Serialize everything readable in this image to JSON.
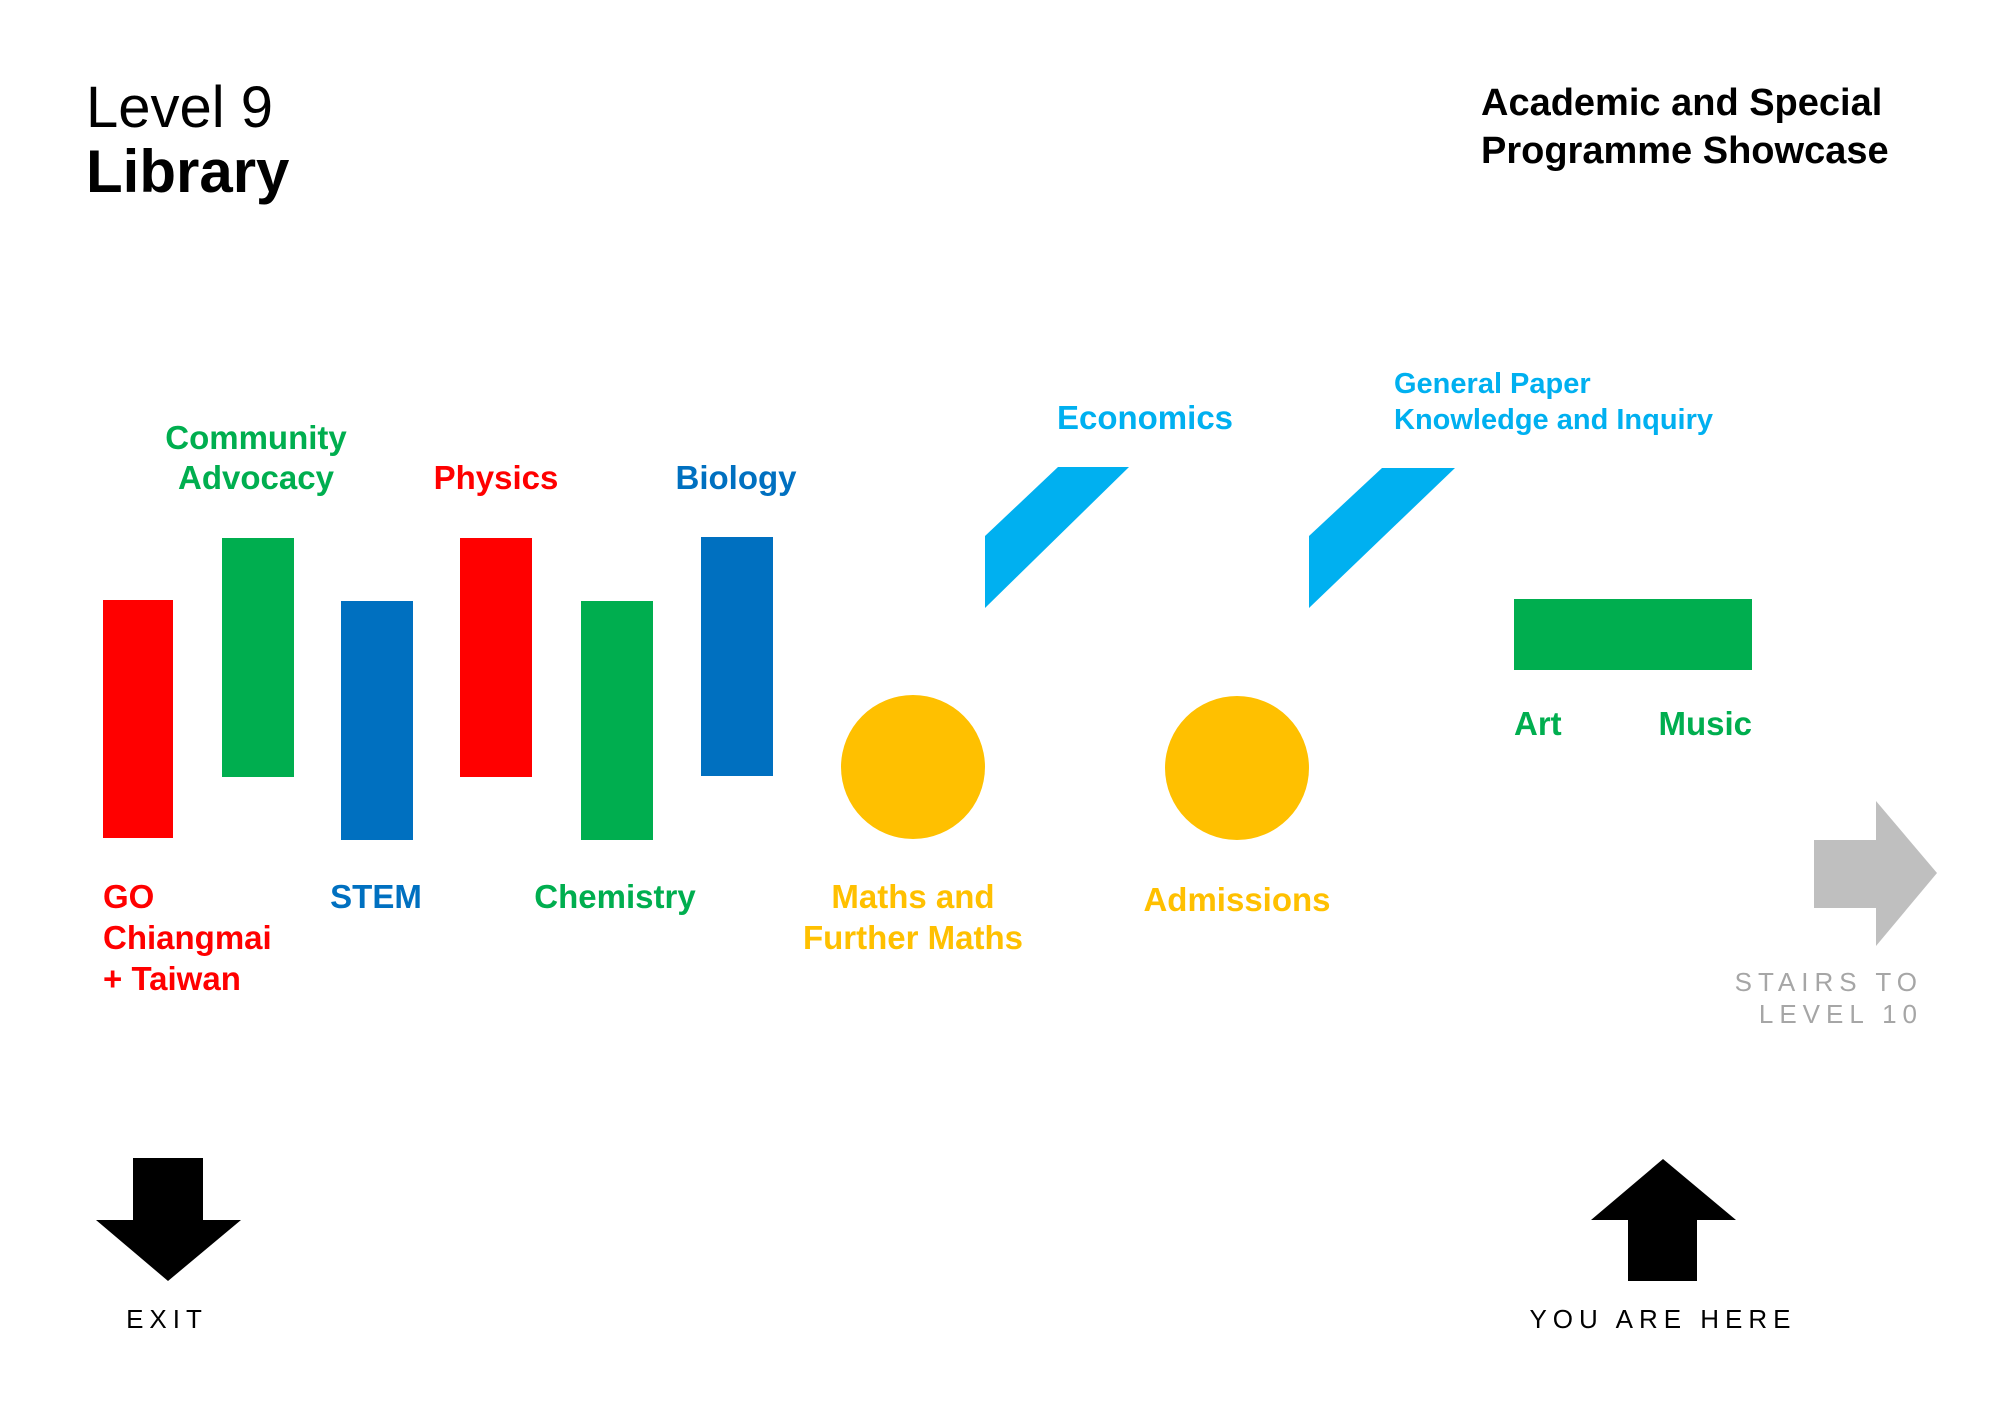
{
  "header": {
    "level": "Level 9",
    "location": "Library",
    "title_line1": "Academic and Special",
    "title_line2": "Programme Showcase"
  },
  "colors": {
    "red": "#ff0000",
    "green": "#00ae4f",
    "blue": "#0070c0",
    "yellow": "#ffc000",
    "cyan": "#00b0f0",
    "grey": "#bfbfbf",
    "black": "#000000"
  },
  "booths": {
    "go": [
      "GO",
      "Chiangmai",
      "+ Taiwan"
    ],
    "community": [
      "Community",
      "Advocacy"
    ],
    "stem": "STEM",
    "physics": "Physics",
    "chemistry": "Chemistry",
    "biology": "Biology",
    "maths": [
      "Maths and",
      "Further Maths"
    ],
    "economics": "Economics",
    "admissions": "Admissions",
    "gp": [
      "General Paper",
      "Knowledge and Inquiry"
    ],
    "art": "Art",
    "music": "Music"
  },
  "navigation": {
    "stairs": [
      "STAIRS TO",
      "LEVEL 10"
    ],
    "exit": "EXIT",
    "you_are_here": "YOU ARE HERE"
  }
}
